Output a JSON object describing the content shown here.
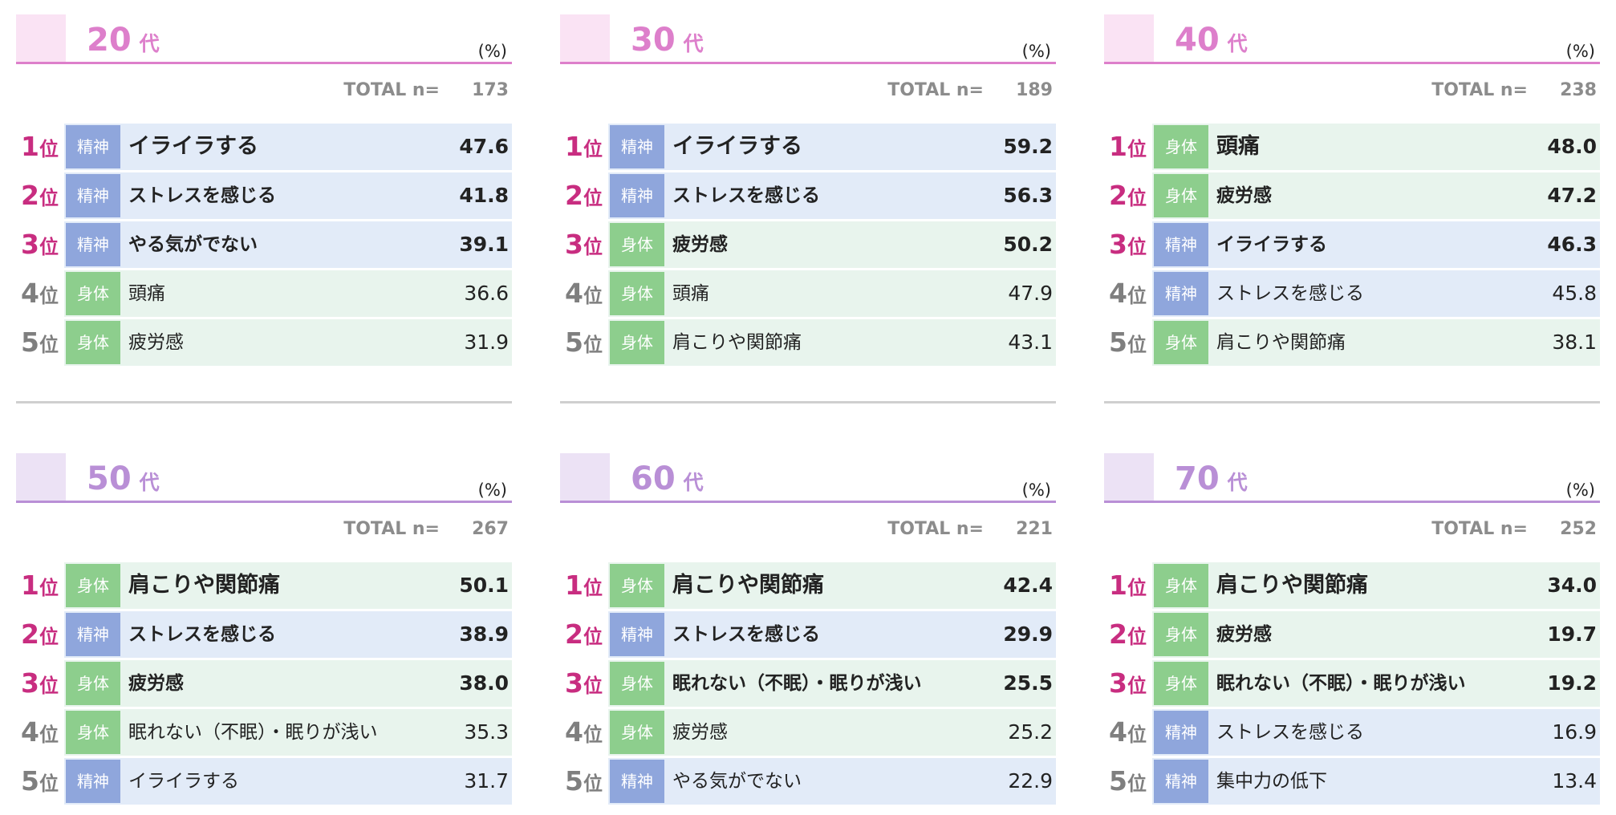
{
  "colors": {
    "rank_top": "#c82d80",
    "rank_low": "#7f7f7f",
    "badge_mental": "#8fa6dc",
    "badge_physical": "#8dce8d",
    "bar_mental": "#e2ebf8",
    "bar_physical": "#e8f4ed"
  },
  "categories": {
    "mental": "精神",
    "physical": "身体"
  },
  "rank_suffix": "位",
  "age_suffix": "代",
  "unit": "(%)",
  "total_label": "TOTAL n=",
  "chart_data": [
    {
      "type": "table",
      "age": "20",
      "theme": {
        "title": "#dd7fcb",
        "swatch": "#fae3f4",
        "line": "#dd7fcb"
      },
      "total_n": "173",
      "rows": [
        {
          "rank": "1",
          "category": "mental",
          "item": "イライラする",
          "value": "47.6"
        },
        {
          "rank": "2",
          "category": "mental",
          "item": "ストレスを感じる",
          "value": "41.8"
        },
        {
          "rank": "3",
          "category": "mental",
          "item": "やる気がでない",
          "value": "39.1"
        },
        {
          "rank": "4",
          "category": "physical",
          "item": "頭痛",
          "value": "36.6"
        },
        {
          "rank": "5",
          "category": "physical",
          "item": "疲労感",
          "value": "31.9"
        }
      ]
    },
    {
      "type": "table",
      "age": "30",
      "theme": {
        "title": "#dd7fcb",
        "swatch": "#fae3f4",
        "line": "#dd7fcb"
      },
      "total_n": "189",
      "rows": [
        {
          "rank": "1",
          "category": "mental",
          "item": "イライラする",
          "value": "59.2"
        },
        {
          "rank": "2",
          "category": "mental",
          "item": "ストレスを感じる",
          "value": "56.3"
        },
        {
          "rank": "3",
          "category": "physical",
          "item": "疲労感",
          "value": "50.2"
        },
        {
          "rank": "4",
          "category": "physical",
          "item": "頭痛",
          "value": "47.9"
        },
        {
          "rank": "5",
          "category": "physical",
          "item": "肩こりや関節痛",
          "value": "43.1"
        }
      ]
    },
    {
      "type": "table",
      "age": "40",
      "theme": {
        "title": "#dd7fcb",
        "swatch": "#fae3f4",
        "line": "#dd7fcb"
      },
      "total_n": "238",
      "rows": [
        {
          "rank": "1",
          "category": "physical",
          "item": "頭痛",
          "value": "48.0"
        },
        {
          "rank": "2",
          "category": "physical",
          "item": "疲労感",
          "value": "47.2"
        },
        {
          "rank": "3",
          "category": "mental",
          "item": "イライラする",
          "value": "46.3"
        },
        {
          "rank": "4",
          "category": "mental",
          "item": "ストレスを感じる",
          "value": "45.8"
        },
        {
          "rank": "5",
          "category": "physical",
          "item": "肩こりや関節痛",
          "value": "38.1"
        }
      ]
    },
    {
      "type": "table",
      "age": "50",
      "theme": {
        "title": "#b98fd6",
        "swatch": "#ece2f5",
        "line": "#b98fd6"
      },
      "total_n": "267",
      "rows": [
        {
          "rank": "1",
          "category": "physical",
          "item": "肩こりや関節痛",
          "value": "50.1"
        },
        {
          "rank": "2",
          "category": "mental",
          "item": "ストレスを感じる",
          "value": "38.9"
        },
        {
          "rank": "3",
          "category": "physical",
          "item": "疲労感",
          "value": "38.0"
        },
        {
          "rank": "4",
          "category": "physical",
          "item": "眠れない（不眠）・眠りが浅い",
          "value": "35.3"
        },
        {
          "rank": "5",
          "category": "mental",
          "item": "イライラする",
          "value": "31.7"
        }
      ]
    },
    {
      "type": "table",
      "age": "60",
      "theme": {
        "title": "#b98fd6",
        "swatch": "#ece2f5",
        "line": "#b98fd6"
      },
      "total_n": "221",
      "rows": [
        {
          "rank": "1",
          "category": "physical",
          "item": "肩こりや関節痛",
          "value": "42.4"
        },
        {
          "rank": "2",
          "category": "mental",
          "item": "ストレスを感じる",
          "value": "29.9"
        },
        {
          "rank": "3",
          "category": "physical",
          "item": "眠れない（不眠）・眠りが浅い",
          "value": "25.5"
        },
        {
          "rank": "4",
          "category": "physical",
          "item": "疲労感",
          "value": "25.2"
        },
        {
          "rank": "5",
          "category": "mental",
          "item": "やる気がでない",
          "value": "22.9"
        }
      ]
    },
    {
      "type": "table",
      "age": "70",
      "theme": {
        "title": "#b98fd6",
        "swatch": "#ece2f5",
        "line": "#b98fd6"
      },
      "total_n": "252",
      "rows": [
        {
          "rank": "1",
          "category": "physical",
          "item": "肩こりや関節痛",
          "value": "34.0"
        },
        {
          "rank": "2",
          "category": "physical",
          "item": "疲労感",
          "value": "19.7"
        },
        {
          "rank": "3",
          "category": "physical",
          "item": "眠れない（不眠）・眠りが浅い",
          "value": "19.2"
        },
        {
          "rank": "4",
          "category": "mental",
          "item": "ストレスを感じる",
          "value": "16.9"
        },
        {
          "rank": "5",
          "category": "mental",
          "item": "集中力の低下",
          "value": "13.4"
        }
      ]
    }
  ]
}
